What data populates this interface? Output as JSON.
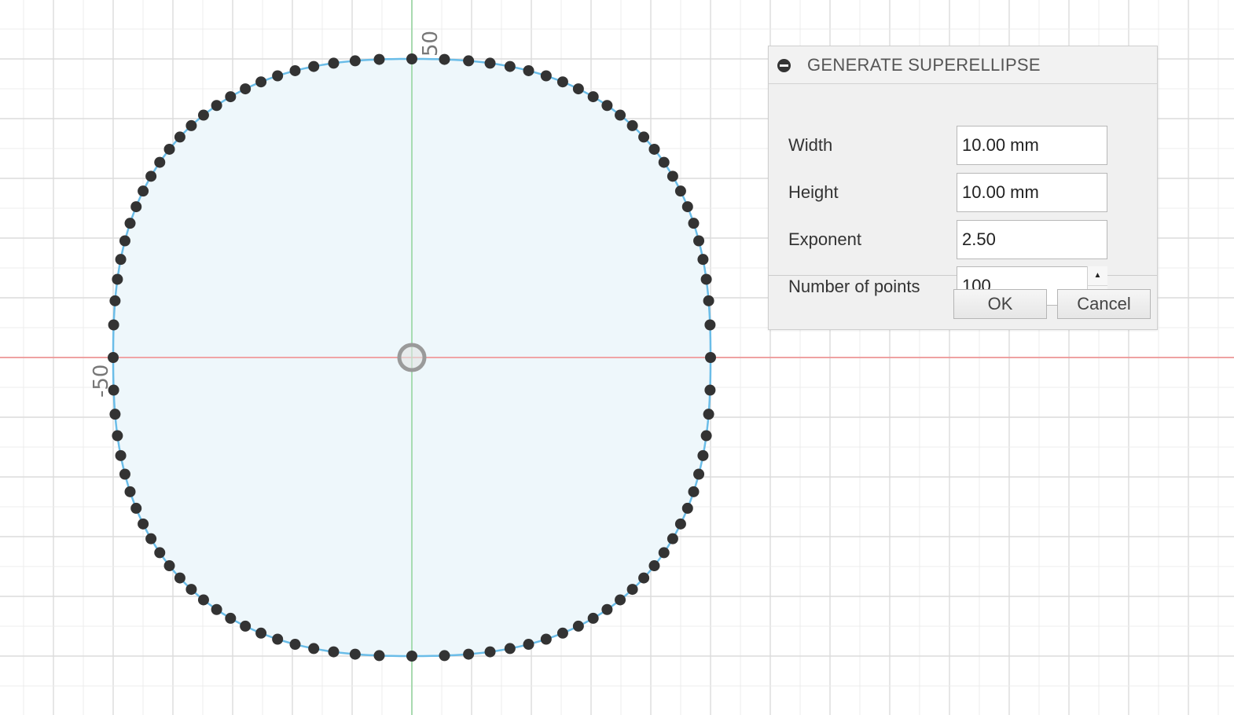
{
  "canvas": {
    "axis_labels": {
      "y_top": "50",
      "x_left": "-50"
    },
    "colors": {
      "grid_minor": "#ececec",
      "grid_major": "#dcdcdc",
      "x_axis": "#f08a8a",
      "y_axis": "#8fd39a",
      "curve": "#6bbde8",
      "fill": "#eef7fb",
      "point": "#333333",
      "origin": "#9a9a9a"
    },
    "superellipse": {
      "width_mm": 10,
      "height_mm": 10,
      "exponent": 2.5,
      "num_points": 100
    }
  },
  "dialog": {
    "title": "GENERATE SUPERELLIPSE",
    "fields": [
      {
        "label": "Width",
        "value": "10.00 mm"
      },
      {
        "label": "Height",
        "value": "10.00 mm"
      },
      {
        "label": "Exponent",
        "value": "2.50"
      },
      {
        "label": "Number of points",
        "value": "100"
      }
    ],
    "spinner_up": "▲",
    "spinner_down": "▼",
    "ok_label": "OK",
    "cancel_label": "Cancel"
  }
}
